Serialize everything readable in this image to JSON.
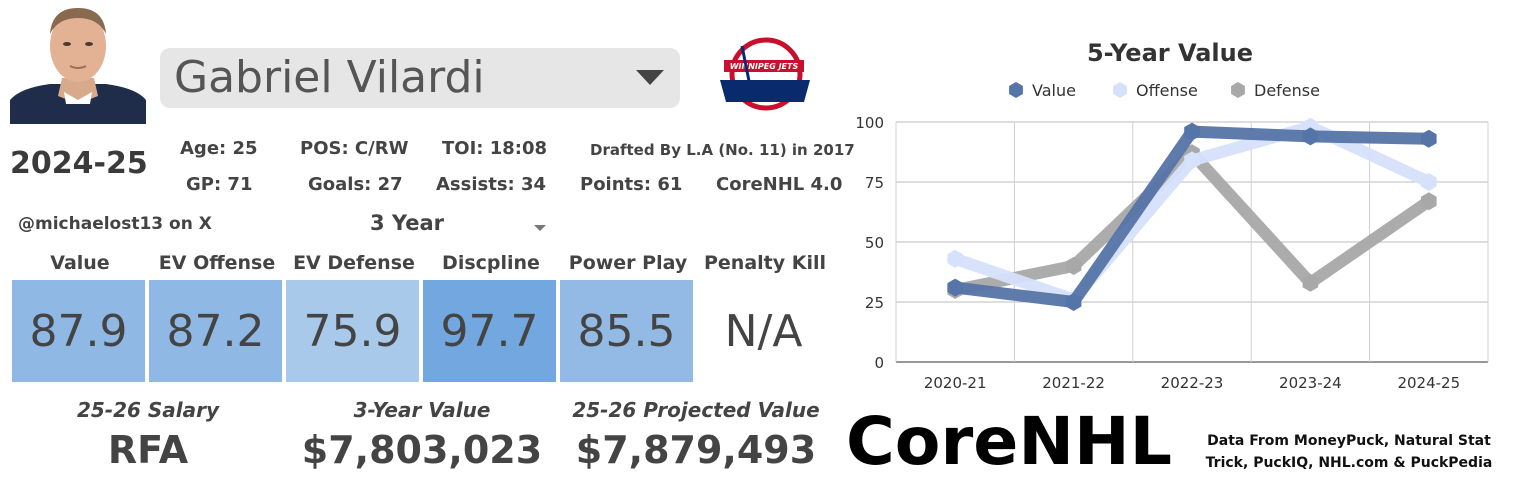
{
  "player": {
    "name": "Gabriel Vilardi"
  },
  "team_logo": {
    "text": "WINNIPEG JETS"
  },
  "season": "2024-25",
  "stats": {
    "age": "Age: 25",
    "pos": "POS: C/RW",
    "toi": "TOI: 18:08",
    "drafted": "Drafted By L.A (No. 11) in 2017",
    "gp": "GP: 71",
    "goals": "Goals: 27",
    "assists": "Assists: 34",
    "points": "Points: 61",
    "version": "CoreNHL 4.0"
  },
  "handle": "@michaelost13 on X",
  "period": "3 Year",
  "categories": [
    {
      "label": "Value",
      "score": "87.9",
      "color": "#8fb8e4"
    },
    {
      "label": "EV Offense",
      "score": "87.2",
      "color": "#8fb8e4"
    },
    {
      "label": "EV Defense",
      "score": "75.9",
      "color": "#a9c9ea"
    },
    {
      "label": "Discpline",
      "score": "97.7",
      "color": "#72a8df"
    },
    {
      "label": "Power Play",
      "score": "85.5",
      "color": "#92bae5"
    },
    {
      "label": "Penalty Kill",
      "score": "N/A",
      "color": "#ffffff"
    }
  ],
  "financials": [
    {
      "label": "25-26 Salary",
      "value": "RFA"
    },
    {
      "label": "3-Year Value",
      "value": "$7,803,023"
    },
    {
      "label": "25-26 Projected Value",
      "value": "$7,879,493"
    }
  ],
  "brand": {
    "logo_text": "CoreNHL"
  },
  "credit": "Data From MoneyPuck, Natural Stat Trick, PuckIQ, NHL.com & PuckPedia",
  "chart_data": {
    "type": "line",
    "title": "5-Year Value",
    "categories": [
      "2020-21",
      "2021-22",
      "2022-23",
      "2023-24",
      "2024-25"
    ],
    "series": [
      {
        "name": "Value",
        "values": [
          31,
          25,
          96,
          94,
          93
        ],
        "color": "#5574a8"
      },
      {
        "name": "Offense",
        "values": [
          43,
          26,
          84,
          98,
          75
        ],
        "color": "#d6e2fb"
      },
      {
        "name": "Defense",
        "values": [
          30,
          40,
          87,
          33,
          67
        ],
        "color": "#a8a8a8"
      }
    ],
    "ylim": [
      0,
      100
    ],
    "yticks": [
      0,
      25,
      50,
      75,
      100
    ],
    "grid": true,
    "legend": "top"
  }
}
